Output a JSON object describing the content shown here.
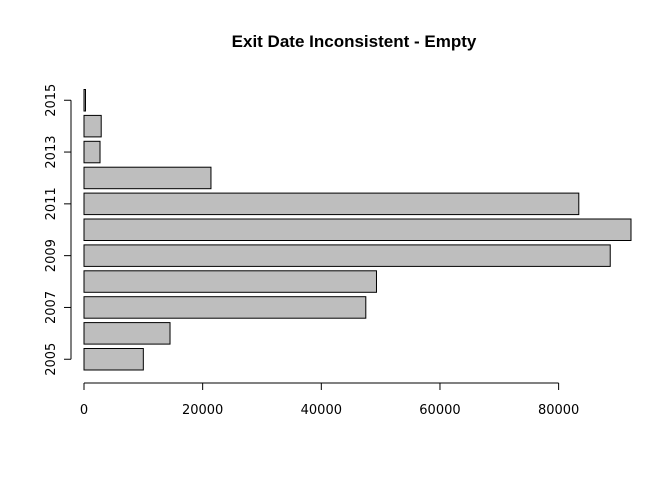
{
  "chart_data": {
    "type": "bar",
    "orientation": "horizontal",
    "title": "Exit Date Inconsistent - Empty",
    "xlabel": "",
    "ylabel": "",
    "categories": [
      "2005",
      "2006",
      "2007",
      "2008",
      "2009",
      "2010",
      "2011",
      "2012",
      "2013",
      "2014",
      "2015"
    ],
    "category_tick_labels": [
      "2005",
      "2007",
      "2009",
      "2011",
      "2013",
      "2015"
    ],
    "values": [
      10000,
      14500,
      47500,
      49300,
      88700,
      92200,
      83400,
      21400,
      2700,
      2900,
      250
    ],
    "xlim": [
      0,
      92200
    ],
    "x_ticks": [
      0,
      20000,
      40000,
      60000,
      80000
    ],
    "x_tick_labels": [
      "0",
      "20000",
      "40000",
      "60000",
      "80000"
    ],
    "bar_color": "#bebebe",
    "bar_border_color": "#000000",
    "grid": false,
    "legend": "none"
  }
}
